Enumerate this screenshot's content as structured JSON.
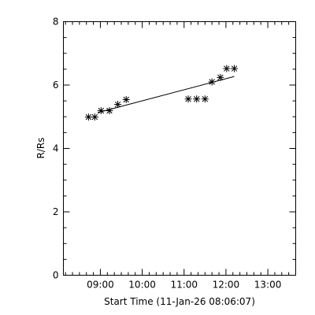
{
  "chart_data": {
    "type": "scatter",
    "xlabel": "Start Time (11-Jan-26 08:06:07)",
    "ylabel": "R/Rs",
    "x_unit": "time of day",
    "xlim": [
      "08:07",
      "13:40"
    ],
    "ylim": [
      0,
      8
    ],
    "x_ticks": [
      "09:00",
      "10:00",
      "11:00",
      "12:00",
      "13:00"
    ],
    "y_ticks": [
      "0",
      "2",
      "4",
      "6",
      "8"
    ],
    "grid": false,
    "marker": "asterisk",
    "points": [
      {
        "x": "08:43",
        "y": 4.99
      },
      {
        "x": "08:52",
        "y": 4.99
      },
      {
        "x": "09:01",
        "y": 5.19
      },
      {
        "x": "09:13",
        "y": 5.19
      },
      {
        "x": "09:25",
        "y": 5.39
      },
      {
        "x": "09:37",
        "y": 5.54
      },
      {
        "x": "11:06",
        "y": 5.56
      },
      {
        "x": "11:18",
        "y": 5.56
      },
      {
        "x": "11:30",
        "y": 5.56
      },
      {
        "x": "11:40",
        "y": 6.1
      },
      {
        "x": "11:52",
        "y": 6.24
      },
      {
        "x": "12:01",
        "y": 6.52
      },
      {
        "x": "12:12",
        "y": 6.52
      }
    ],
    "fit_line": [
      {
        "x": "08:56",
        "y": 5.13
      },
      {
        "x": "12:12",
        "y": 6.27
      }
    ]
  }
}
